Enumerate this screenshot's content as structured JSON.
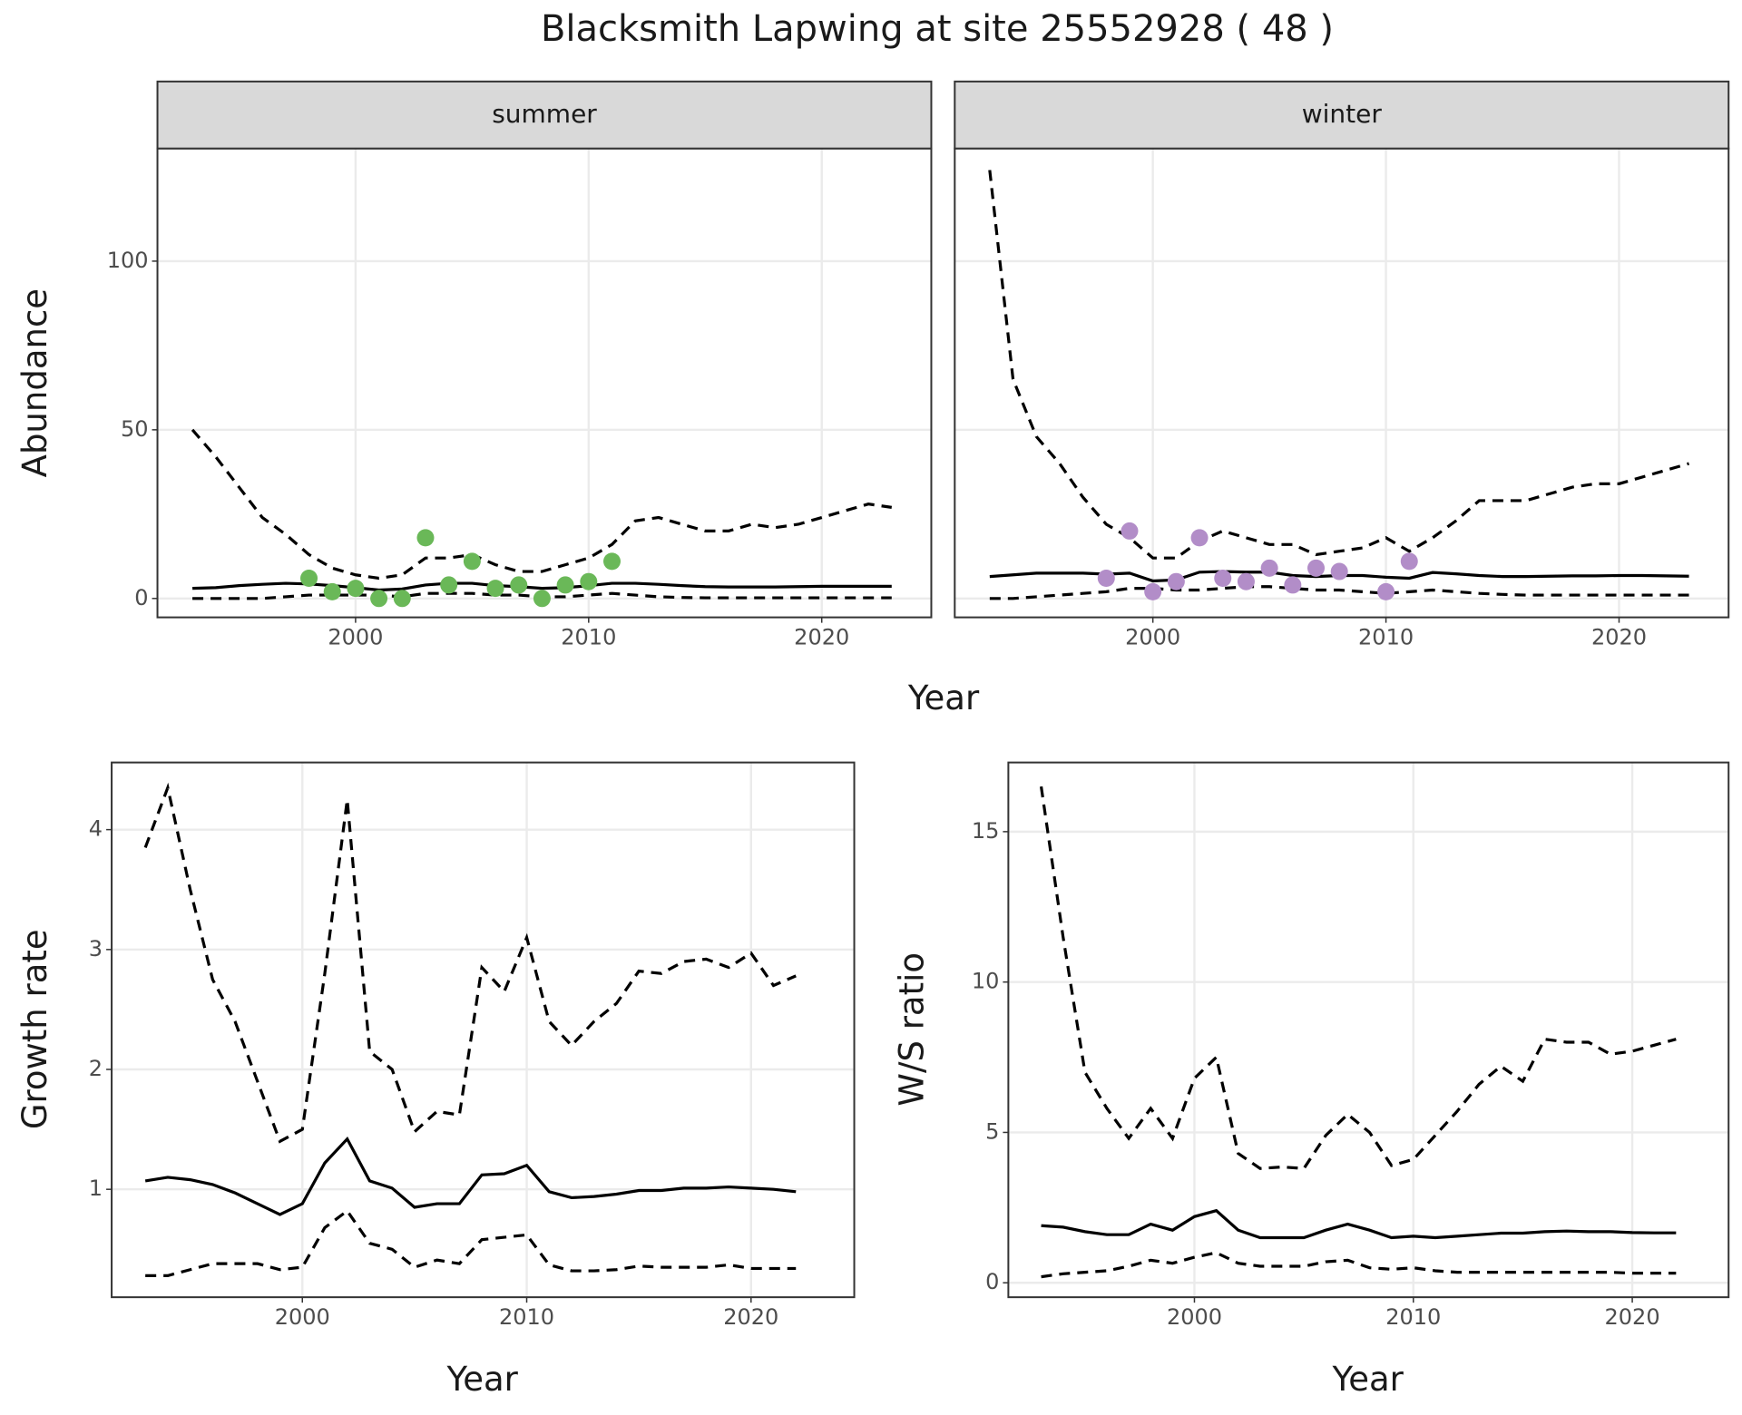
{
  "title": "Blacksmith Lapwing at site 25552928 ( 48 )",
  "chart_data": [
    {
      "type": "line",
      "strip": "summer",
      "xlabel": "Year",
      "ylabel": "Abundance",
      "xlim": [
        1991.5,
        2024.7
      ],
      "xticks": [
        2000,
        2010,
        2020
      ],
      "ylim": [
        -5.6,
        133.4
      ],
      "yticks": [
        0,
        50,
        100
      ],
      "ytick_labels": true,
      "grid": true,
      "x": [
        1993,
        1994,
        1995,
        1996,
        1997,
        1998,
        1999,
        2000,
        2001,
        2002,
        2003,
        2004,
        2005,
        2006,
        2007,
        2008,
        2009,
        2010,
        2011,
        2012,
        2013,
        2014,
        2015,
        2016,
        2017,
        2018,
        2019,
        2020,
        2021,
        2022,
        2023
      ],
      "series": [
        {
          "style": "solid",
          "color": "#000000",
          "values": [
            3,
            3.2,
            3.8,
            4.2,
            4.5,
            4.3,
            3.8,
            3.2,
            2.5,
            2.8,
            4,
            4.5,
            4.5,
            3.8,
            3.5,
            3,
            3.2,
            3.8,
            4.5,
            4.5,
            4.2,
            3.8,
            3.5,
            3.4,
            3.4,
            3.4,
            3.5,
            3.6,
            3.6,
            3.6,
            3.6
          ]
        },
        {
          "style": "dashed",
          "color": "#000000",
          "values": [
            50,
            42,
            33,
            24,
            19,
            13,
            9,
            7,
            6,
            7,
            12,
            12,
            13,
            10,
            8,
            8,
            10,
            12,
            16,
            23,
            24,
            22,
            20,
            20,
            22,
            21,
            22,
            24,
            26,
            28,
            27
          ]
        },
        {
          "style": "dashed",
          "color": "#000000",
          "values": [
            0,
            0,
            0,
            0,
            0.5,
            1,
            1,
            1,
            1,
            0.5,
            1.5,
            1.5,
            1.5,
            1,
            1,
            0.5,
            0.5,
            1,
            1.5,
            1,
            0.5,
            0.3,
            0.2,
            0.2,
            0.2,
            0.2,
            0.2,
            0.2,
            0.2,
            0.2,
            0.2
          ]
        }
      ],
      "points": {
        "color": "#6ab858",
        "x": [
          1998,
          1999,
          2000,
          2001,
          2002,
          2003,
          2004,
          2005,
          2006,
          2007,
          2008,
          2009,
          2010,
          2011
        ],
        "values": [
          6,
          2,
          3,
          0,
          0,
          18,
          4,
          11,
          3,
          4,
          0,
          4,
          5,
          11
        ]
      }
    },
    {
      "type": "line",
      "strip": "winter",
      "xlim": [
        1991.5,
        2024.7
      ],
      "xticks": [
        2000,
        2010,
        2020
      ],
      "ylim": [
        -5.6,
        133.4
      ],
      "yticks": [
        0,
        50,
        100
      ],
      "ytick_labels": false,
      "grid": true,
      "x": [
        1993,
        1994,
        1995,
        1996,
        1997,
        1998,
        1999,
        2000,
        2001,
        2002,
        2003,
        2004,
        2005,
        2006,
        2007,
        2008,
        2009,
        2010,
        2011,
        2012,
        2013,
        2014,
        2015,
        2016,
        2017,
        2018,
        2019,
        2020,
        2021,
        2022,
        2023
      ],
      "series": [
        {
          "style": "solid",
          "color": "#000000",
          "values": [
            6.5,
            7,
            7.5,
            7.5,
            7.5,
            7.2,
            7.5,
            5.2,
            5.5,
            7.8,
            8,
            7.8,
            7.8,
            6.8,
            6.5,
            6.8,
            6.8,
            6.3,
            6,
            7.7,
            7.3,
            6.8,
            6.5,
            6.5,
            6.6,
            6.7,
            6.7,
            6.8,
            6.8,
            6.7,
            6.6
          ]
        },
        {
          "style": "dashed",
          "color": "#000000",
          "values": [
            127,
            65,
            48,
            40,
            30,
            22,
            18,
            12,
            12,
            17,
            20,
            18,
            16,
            16,
            13,
            14,
            15,
            18,
            14,
            18,
            23,
            29,
            29,
            29,
            31,
            33,
            34,
            34,
            36,
            38,
            40
          ]
        },
        {
          "style": "dashed",
          "color": "#000000",
          "values": [
            0,
            0,
            0.5,
            1,
            1.5,
            2,
            3,
            3,
            2.5,
            2.5,
            3,
            3.5,
            3.5,
            3,
            2.5,
            2.5,
            2,
            1.5,
            2,
            2.5,
            2,
            1.5,
            1.2,
            1,
            1,
            1,
            1,
            1,
            1,
            1,
            1
          ]
        }
      ],
      "points": {
        "color": "#b28dc8",
        "x": [
          1998,
          1999,
          2000,
          2001,
          2002,
          2003,
          2004,
          2005,
          2006,
          2007,
          2008,
          2010,
          2011
        ],
        "values": [
          6,
          20,
          2,
          5,
          18,
          6,
          5,
          9,
          4,
          9,
          8,
          2,
          11
        ]
      }
    },
    {
      "type": "line",
      "xlabel": "Year",
      "ylabel": "Growth rate",
      "xlim": [
        1991.5,
        2024.6
      ],
      "xticks": [
        2000,
        2010,
        2020
      ],
      "ylim": [
        0.1,
        4.56
      ],
      "yticks": [
        1,
        2,
        3,
        4
      ],
      "ytick_labels": true,
      "grid": true,
      "x": [
        1993,
        1994,
        1995,
        1996,
        1997,
        1998,
        1999,
        2000,
        2001,
        2002,
        2003,
        2004,
        2005,
        2006,
        2007,
        2008,
        2009,
        2010,
        2011,
        2012,
        2013,
        2014,
        2015,
        2016,
        2017,
        2018,
        2019,
        2020,
        2021,
        2022
      ],
      "series": [
        {
          "style": "solid",
          "color": "#000000",
          "values": [
            1.07,
            1.1,
            1.08,
            1.04,
            0.97,
            0.88,
            0.79,
            0.88,
            1.22,
            1.42,
            1.07,
            1.01,
            0.85,
            0.88,
            0.88,
            1.12,
            1.13,
            1.2,
            0.98,
            0.93,
            0.94,
            0.96,
            0.99,
            0.99,
            1.01,
            1.01,
            1.02,
            1.01,
            1.0,
            0.98
          ]
        },
        {
          "style": "dashed",
          "color": "#000000",
          "values": [
            3.85,
            4.35,
            3.5,
            2.75,
            2.4,
            1.9,
            1.4,
            1.5,
            2.8,
            4.25,
            2.15,
            2.0,
            1.48,
            1.65,
            1.62,
            2.85,
            2.65,
            3.1,
            2.4,
            2.2,
            2.4,
            2.55,
            2.82,
            2.8,
            2.9,
            2.92,
            2.85,
            2.97,
            2.7,
            2.78
          ]
        },
        {
          "style": "dashed",
          "color": "#000000",
          "values": [
            0.28,
            0.28,
            0.33,
            0.38,
            0.38,
            0.38,
            0.33,
            0.35,
            0.68,
            0.82,
            0.55,
            0.5,
            0.35,
            0.41,
            0.38,
            0.58,
            0.6,
            0.62,
            0.37,
            0.32,
            0.32,
            0.33,
            0.36,
            0.35,
            0.35,
            0.35,
            0.37,
            0.34,
            0.34,
            0.34
          ]
        }
      ]
    },
    {
      "type": "line",
      "xlabel": "Year",
      "ylabel": "W/S ratio",
      "xlim": [
        1991.5,
        2024.4
      ],
      "xticks": [
        2000,
        2010,
        2020
      ],
      "ylim": [
        -0.48,
        17.3
      ],
      "yticks": [
        0,
        5,
        10,
        15
      ],
      "ytick_labels": true,
      "grid": true,
      "x": [
        1993,
        1994,
        1995,
        1996,
        1997,
        1998,
        1999,
        2000,
        2001,
        2002,
        2003,
        2004,
        2005,
        2006,
        2007,
        2008,
        2009,
        2010,
        2011,
        2012,
        2013,
        2014,
        2015,
        2016,
        2017,
        2018,
        2019,
        2020,
        2021,
        2022
      ],
      "series": [
        {
          "style": "solid",
          "color": "#000000",
          "values": [
            1.9,
            1.85,
            1.7,
            1.6,
            1.6,
            1.95,
            1.75,
            2.2,
            2.4,
            1.75,
            1.5,
            1.5,
            1.5,
            1.75,
            1.95,
            1.75,
            1.5,
            1.55,
            1.5,
            1.55,
            1.6,
            1.65,
            1.65,
            1.7,
            1.72,
            1.7,
            1.7,
            1.67,
            1.66,
            1.66
          ]
        },
        {
          "style": "dashed",
          "color": "#000000",
          "values": [
            16.5,
            11.5,
            7.0,
            5.8,
            4.8,
            5.8,
            4.8,
            6.8,
            7.5,
            4.3,
            3.8,
            3.85,
            3.8,
            4.9,
            5.6,
            5.0,
            3.9,
            4.1,
            4.9,
            5.7,
            6.6,
            7.2,
            6.7,
            8.1,
            8.0,
            8.0,
            7.6,
            7.7,
            7.9,
            8.1
          ]
        },
        {
          "style": "dashed",
          "color": "#000000",
          "values": [
            0.2,
            0.3,
            0.35,
            0.4,
            0.55,
            0.75,
            0.65,
            0.85,
            1.0,
            0.65,
            0.55,
            0.55,
            0.55,
            0.7,
            0.75,
            0.5,
            0.45,
            0.5,
            0.4,
            0.35,
            0.35,
            0.35,
            0.35,
            0.35,
            0.35,
            0.35,
            0.35,
            0.32,
            0.32,
            0.32
          ]
        }
      ]
    }
  ]
}
